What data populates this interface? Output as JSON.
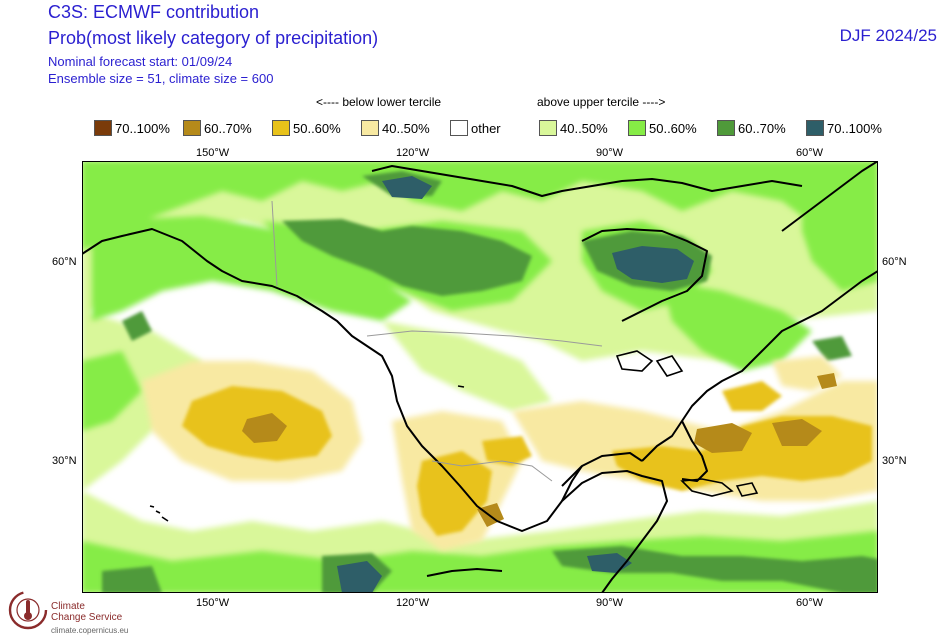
{
  "header": {
    "title_line1": "C3S: ECMWF contribution",
    "title_line2": "Prob(most likely category of precipitation)",
    "forecast_start": "Nominal forecast start: 01/09/24",
    "ensemble": "Ensemble size = 51, climate size = 600",
    "season": "DJF 2024/25"
  },
  "legend": {
    "below_label": "<---- below lower tercile",
    "above_label": "above upper tercile ---->",
    "items": [
      {
        "label": "70..100%",
        "color": "#7a3b0a"
      },
      {
        "label": "60..70%",
        "color": "#b58a1a"
      },
      {
        "label": "50..60%",
        "color": "#e8c21a"
      },
      {
        "label": "40..50%",
        "color": "#f8e9a2"
      },
      {
        "label": "other",
        "color": "#ffffff"
      },
      {
        "label": "40..50%",
        "color": "#d9f79a"
      },
      {
        "label": "50..60%",
        "color": "#86ec46"
      },
      {
        "label": "60..70%",
        "color": "#4f9a3a"
      },
      {
        "label": "70..100%",
        "color": "#2e5e68"
      }
    ]
  },
  "map": {
    "lon_labels": [
      "150°W",
      "120°W",
      "90°W",
      "60°W"
    ],
    "lat_labels": [
      "60°N",
      "30°N"
    ]
  },
  "logo": {
    "line1": "Climate",
    "line2": "Change Service",
    "url": "climate.copernicus.eu"
  }
}
